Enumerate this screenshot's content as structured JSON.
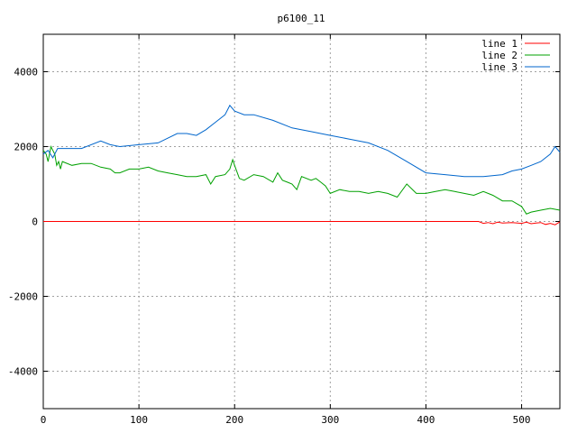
{
  "chart_data": {
    "type": "line",
    "title": "p6100_11",
    "xlabel": "",
    "ylabel": "",
    "xlim": [
      0,
      540
    ],
    "ylim": [
      -5000,
      5000
    ],
    "xticks": [
      "0",
      "100",
      "200",
      "300",
      "400",
      "500"
    ],
    "yticks": [
      "-4000",
      "-2000",
      "0",
      "2000",
      "4000"
    ],
    "grid": true,
    "legend_position": "top-right",
    "series": [
      {
        "name": "line 1",
        "color": "#ff0000",
        "x": [
          0,
          100,
          200,
          300,
          400,
          455,
          460,
          465,
          470,
          475,
          480,
          490,
          500,
          505,
          510,
          515,
          520,
          525,
          530,
          535,
          540
        ],
        "y": [
          0,
          0,
          0,
          0,
          0,
          0,
          -50,
          -30,
          -60,
          -20,
          -40,
          -30,
          -50,
          -20,
          -60,
          -40,
          -30,
          -80,
          -50,
          -90,
          -10
        ]
      },
      {
        "name": "line 2",
        "color": "#00a000",
        "x": [
          0,
          3,
          5,
          8,
          10,
          12,
          14,
          16,
          18,
          20,
          30,
          40,
          50,
          60,
          70,
          75,
          80,
          90,
          100,
          110,
          120,
          130,
          140,
          150,
          160,
          170,
          175,
          180,
          190,
          195,
          198,
          200,
          205,
          210,
          220,
          230,
          240,
          245,
          250,
          255,
          260,
          265,
          270,
          280,
          285,
          290,
          295,
          300,
          310,
          320,
          330,
          340,
          350,
          360,
          370,
          380,
          390,
          400,
          410,
          420,
          430,
          440,
          450,
          460,
          470,
          480,
          490,
          500,
          505,
          510,
          520,
          530,
          540
        ],
        "y": [
          1900,
          1800,
          1600,
          2000,
          1900,
          1800,
          1500,
          1600,
          1400,
          1600,
          1500,
          1550,
          1550,
          1450,
          1400,
          1300,
          1300,
          1400,
          1400,
          1450,
          1350,
          1300,
          1250,
          1200,
          1200,
          1250,
          1000,
          1200,
          1250,
          1400,
          1650,
          1500,
          1150,
          1100,
          1250,
          1200,
          1050,
          1300,
          1100,
          1050,
          1000,
          850,
          1200,
          1100,
          1150,
          1050,
          950,
          750,
          850,
          800,
          800,
          750,
          800,
          750,
          650,
          1000,
          750,
          750,
          800,
          850,
          800,
          750,
          700,
          800,
          700,
          550,
          550,
          400,
          200,
          250,
          300,
          350,
          300
        ]
      },
      {
        "name": "line 3",
        "color": "#0066cc",
        "x": [
          0,
          5,
          10,
          15,
          20,
          40,
          60,
          70,
          80,
          100,
          120,
          140,
          150,
          160,
          170,
          180,
          190,
          195,
          200,
          210,
          220,
          240,
          260,
          280,
          300,
          320,
          340,
          360,
          380,
          400,
          420,
          440,
          460,
          480,
          490,
          500,
          510,
          520,
          530,
          535,
          540
        ],
        "y": [
          1800,
          1900,
          1700,
          1950,
          1950,
          1950,
          2150,
          2050,
          2000,
          2050,
          2100,
          2350,
          2350,
          2300,
          2450,
          2650,
          2850,
          3100,
          2950,
          2850,
          2850,
          2700,
          2500,
          2400,
          2300,
          2200,
          2100,
          1900,
          1600,
          1300,
          1250,
          1200,
          1200,
          1250,
          1350,
          1400,
          1500,
          1600,
          1800,
          2000,
          1850
        ]
      }
    ]
  }
}
